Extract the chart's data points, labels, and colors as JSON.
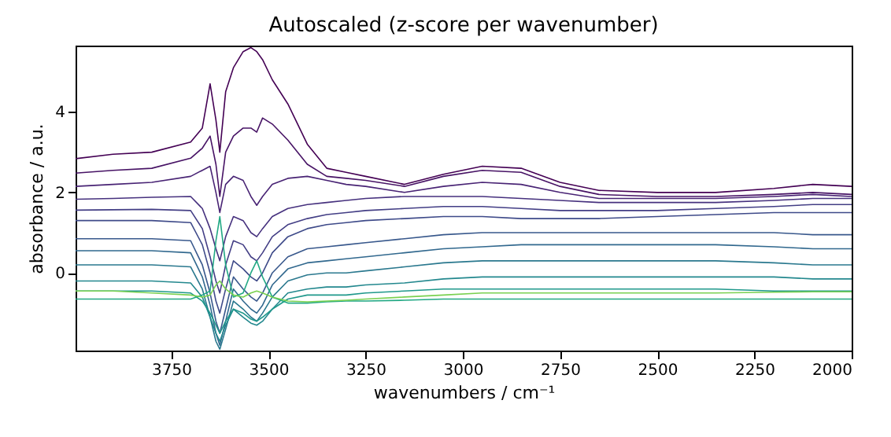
{
  "chart_data": {
    "type": "line",
    "title": "Autoscaled (z-score per wavenumber)",
    "xlabel": "wavenumbers / cm⁻¹",
    "ylabel": "absorbance / a.u.",
    "x": [
      3996,
      3900,
      3800,
      3700,
      3670,
      3650,
      3635,
      3625,
      3610,
      3590,
      3565,
      3545,
      3530,
      3515,
      3490,
      3450,
      3400,
      3350,
      3300,
      3250,
      3150,
      3050,
      2950,
      2850,
      2750,
      2650,
      2500,
      2350,
      2200,
      2100,
      2000
    ],
    "xlim": [
      3996,
      2000
    ],
    "xticks": [
      3750,
      3500,
      3250,
      3000,
      2750,
      2500,
      2250,
      2000
    ],
    "ylim": [
      -1.93,
      5.65
    ],
    "yticks": [
      0,
      2,
      4
    ],
    "grid": false,
    "legend": false,
    "marker": "none",
    "line_style": "solid",
    "series": [
      {
        "color": "#440154",
        "values": [
          2.84,
          2.95,
          3.0,
          3.25,
          3.6,
          4.7,
          3.8,
          3.0,
          4.5,
          5.1,
          5.5,
          5.6,
          5.5,
          5.3,
          4.8,
          4.2,
          3.2,
          2.6,
          2.5,
          2.4,
          2.2,
          2.45,
          2.65,
          2.6,
          2.25,
          2.05,
          2.0,
          2.0,
          2.1,
          2.2,
          2.15
        ]
      },
      {
        "color": "#471365",
        "values": [
          2.48,
          2.55,
          2.6,
          2.85,
          3.1,
          3.4,
          2.7,
          1.9,
          3.0,
          3.4,
          3.6,
          3.6,
          3.5,
          3.85,
          3.7,
          3.3,
          2.7,
          2.4,
          2.35,
          2.3,
          2.15,
          2.4,
          2.55,
          2.5,
          2.15,
          1.95,
          1.9,
          1.9,
          1.95,
          2.0,
          1.95
        ]
      },
      {
        "color": "#482374",
        "values": [
          2.15,
          2.2,
          2.25,
          2.4,
          2.55,
          2.65,
          2.0,
          1.5,
          2.2,
          2.4,
          2.3,
          1.9,
          1.68,
          1.9,
          2.2,
          2.35,
          2.4,
          2.3,
          2.2,
          2.15,
          2.0,
          2.15,
          2.25,
          2.2,
          2.0,
          1.85,
          1.85,
          1.85,
          1.9,
          1.95,
          1.9
        ]
      },
      {
        "color": "#46317e",
        "values": [
          1.83,
          1.85,
          1.88,
          1.9,
          1.6,
          1.1,
          0.6,
          0.3,
          0.9,
          1.4,
          1.3,
          1.0,
          0.9,
          1.1,
          1.4,
          1.6,
          1.7,
          1.75,
          1.8,
          1.85,
          1.9,
          1.9,
          1.9,
          1.85,
          1.8,
          1.75,
          1.75,
          1.75,
          1.8,
          1.85,
          1.85
        ]
      },
      {
        "color": "#433e85",
        "values": [
          1.56,
          1.57,
          1.58,
          1.55,
          1.1,
          0.4,
          -0.2,
          -0.5,
          0.2,
          0.8,
          0.7,
          0.4,
          0.3,
          0.5,
          0.9,
          1.2,
          1.35,
          1.45,
          1.5,
          1.55,
          1.6,
          1.65,
          1.65,
          1.6,
          1.55,
          1.55,
          1.55,
          1.6,
          1.65,
          1.7,
          1.7
        ]
      },
      {
        "color": "#3e4a89",
        "values": [
          1.3,
          1.3,
          1.3,
          1.25,
          0.7,
          0.0,
          -0.7,
          -1.0,
          -0.4,
          0.3,
          0.1,
          -0.1,
          -0.2,
          0.0,
          0.5,
          0.9,
          1.1,
          1.2,
          1.25,
          1.3,
          1.35,
          1.4,
          1.4,
          1.35,
          1.35,
          1.35,
          1.4,
          1.45,
          1.5,
          1.5,
          1.5
        ]
      },
      {
        "color": "#38588c",
        "values": [
          0.85,
          0.85,
          0.85,
          0.8,
          0.2,
          -0.5,
          -1.2,
          -1.5,
          -0.9,
          -0.1,
          -0.4,
          -0.6,
          -0.7,
          -0.5,
          0.0,
          0.4,
          0.6,
          0.65,
          0.7,
          0.75,
          0.85,
          0.95,
          1.0,
          1.0,
          1.0,
          1.0,
          1.0,
          1.0,
          1.0,
          0.95,
          0.95
        ]
      },
      {
        "color": "#31688e",
        "values": [
          0.55,
          0.55,
          0.55,
          0.5,
          -0.1,
          -0.8,
          -1.5,
          -1.8,
          -1.2,
          -0.4,
          -0.7,
          -0.9,
          -1.0,
          -0.8,
          -0.3,
          0.1,
          0.25,
          0.3,
          0.35,
          0.4,
          0.5,
          0.6,
          0.65,
          0.7,
          0.7,
          0.7,
          0.7,
          0.7,
          0.65,
          0.6,
          0.6
        ]
      },
      {
        "color": "#2a788e",
        "values": [
          0.2,
          0.2,
          0.2,
          0.15,
          -0.4,
          -1.1,
          -1.7,
          -1.9,
          -1.4,
          -0.7,
          -0.9,
          -1.1,
          -1.2,
          -1.0,
          -0.6,
          -0.2,
          -0.05,
          0.0,
          0.0,
          0.05,
          0.15,
          0.25,
          0.3,
          0.3,
          0.3,
          0.3,
          0.3,
          0.3,
          0.25,
          0.2,
          0.2
        ]
      },
      {
        "color": "#23888e",
        "values": [
          -0.2,
          -0.2,
          -0.2,
          -0.25,
          -0.6,
          -1.1,
          -1.5,
          -1.7,
          -1.3,
          -0.9,
          -1.1,
          -1.25,
          -1.3,
          -1.2,
          -0.9,
          -0.5,
          -0.4,
          -0.35,
          -0.35,
          -0.3,
          -0.25,
          -0.15,
          -0.1,
          -0.1,
          -0.1,
          -0.1,
          -0.1,
          -0.1,
          -0.1,
          -0.15,
          -0.15
        ]
      },
      {
        "color": "#1f988b",
        "values": [
          -0.45,
          -0.45,
          -0.45,
          -0.5,
          -0.7,
          -1.0,
          -1.3,
          -1.5,
          -1.2,
          -0.9,
          -1.0,
          -1.15,
          -1.2,
          -1.1,
          -0.9,
          -0.65,
          -0.55,
          -0.55,
          -0.55,
          -0.5,
          -0.45,
          -0.4,
          -0.4,
          -0.4,
          -0.4,
          -0.4,
          -0.4,
          -0.4,
          -0.45,
          -0.45,
          -0.45
        ]
      },
      {
        "color": "#22a884",
        "values": [
          -0.65,
          -0.65,
          -0.65,
          -0.65,
          -0.55,
          -0.45,
          0.8,
          1.4,
          0.2,
          -0.6,
          -0.5,
          0.0,
          0.3,
          -0.1,
          -0.6,
          -0.75,
          -0.75,
          -0.72,
          -0.7,
          -0.7,
          -0.68,
          -0.65,
          -0.65,
          -0.65,
          -0.65,
          -0.65,
          -0.65,
          -0.65,
          -0.65,
          -0.65,
          -0.65
        ]
      },
      {
        "color": "#7ad151",
        "values": [
          -0.45,
          -0.45,
          -0.5,
          -0.55,
          -0.6,
          -0.55,
          -0.3,
          -0.2,
          -0.4,
          -0.55,
          -0.6,
          -0.5,
          -0.45,
          -0.5,
          -0.6,
          -0.7,
          -0.72,
          -0.7,
          -0.68,
          -0.65,
          -0.6,
          -0.55,
          -0.5,
          -0.5,
          -0.5,
          -0.5,
          -0.5,
          -0.5,
          -0.48,
          -0.47,
          -0.47
        ]
      }
    ]
  }
}
